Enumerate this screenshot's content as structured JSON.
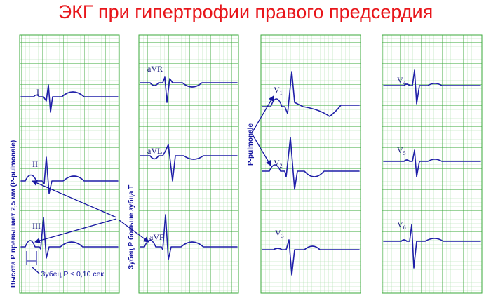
{
  "title": "ЭКГ при гипертрофии правого предсердия",
  "leads": {
    "I": "I",
    "II": "II",
    "III": "III",
    "aVR": "aVR",
    "aVL": "aVL",
    "aVF": "aVF",
    "V1": {
      "main": "V",
      "sub": "1"
    },
    "V2": {
      "main": "V",
      "sub": "2"
    },
    "V3": {
      "main": "V",
      "sub": "3"
    },
    "V4": {
      "main": "V",
      "sub": "4"
    },
    "V5": {
      "main": "V",
      "sub": "5"
    },
    "V6": {
      "main": "V",
      "sub": "6"
    }
  },
  "annotations": {
    "p_height": "Высота Р превышает 2,5 мм (P-pulmonale)",
    "p_taller_than_t": "Зубец Р больше зубца Т",
    "p_pulmonale": "P-pulmonale",
    "p_duration": "Зубец Р ≤ 0,10 сек"
  },
  "colors": {
    "title": "#e8161b",
    "grid_minor": "#9dd99d",
    "grid_major": "#3aa83a",
    "trace": "#1f1fa8",
    "annotation": "#1616a0"
  }
}
